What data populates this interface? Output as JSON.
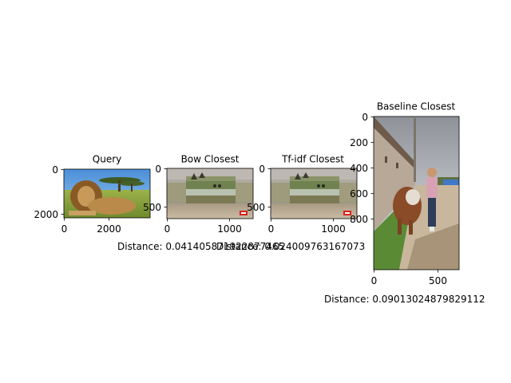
{
  "figure": {
    "background": "#ffffff",
    "axis_color": "#000000",
    "panels": [
      {
        "id": "query",
        "title": "Query",
        "x_ticks": [
          "0",
          "2000"
        ],
        "y_ticks": [
          "0",
          "2000"
        ],
        "distance": "",
        "image": "lion-photo"
      },
      {
        "id": "bow",
        "title": "Bow  Closest",
        "x_ticks": [
          "0",
          "1000"
        ],
        "y_ticks": [
          "0",
          "500"
        ],
        "distance": "Distance: 0.041405871922877465",
        "image": "safari-scene-photo"
      },
      {
        "id": "tfidf",
        "title": "Tf-idf  Closest",
        "x_ticks": [
          "0",
          "1000"
        ],
        "y_ticks": [
          "0",
          "500"
        ],
        "distance": "Distance: 0.024009763167073",
        "image": "safari-scene-photo"
      },
      {
        "id": "baseline",
        "title": "Baseline  Closest",
        "x_ticks": [
          "0",
          "500"
        ],
        "y_ticks": [
          "0",
          "200",
          "400",
          "600",
          "800"
        ],
        "distance": "Distance: 0.09013024879829112",
        "image": "man-walking-cow-photo"
      }
    ]
  },
  "chart_data": {
    "type": "image-grid",
    "panels": [
      {
        "title": "Query",
        "x_ticks": [
          0,
          2000
        ],
        "y_ticks": [
          0,
          2000
        ]
      },
      {
        "title": "Bow  Closest",
        "x_ticks": [
          0,
          1000
        ],
        "y_ticks": [
          0,
          500
        ]
      },
      {
        "title": "Tf-idf  Closest",
        "x_ticks": [
          0,
          1000
        ],
        "y_ticks": [
          0,
          500
        ]
      },
      {
        "title": "Baseline  Closest",
        "x_ticks": [
          0,
          500
        ],
        "y_ticks": [
          0,
          200,
          400,
          600,
          800
        ]
      }
    ],
    "annotations": [
      "Distance: 0.041405871922877465",
      "Distance: 0.024009763167073",
      "Distance: 0.09013024879829112"
    ]
  }
}
